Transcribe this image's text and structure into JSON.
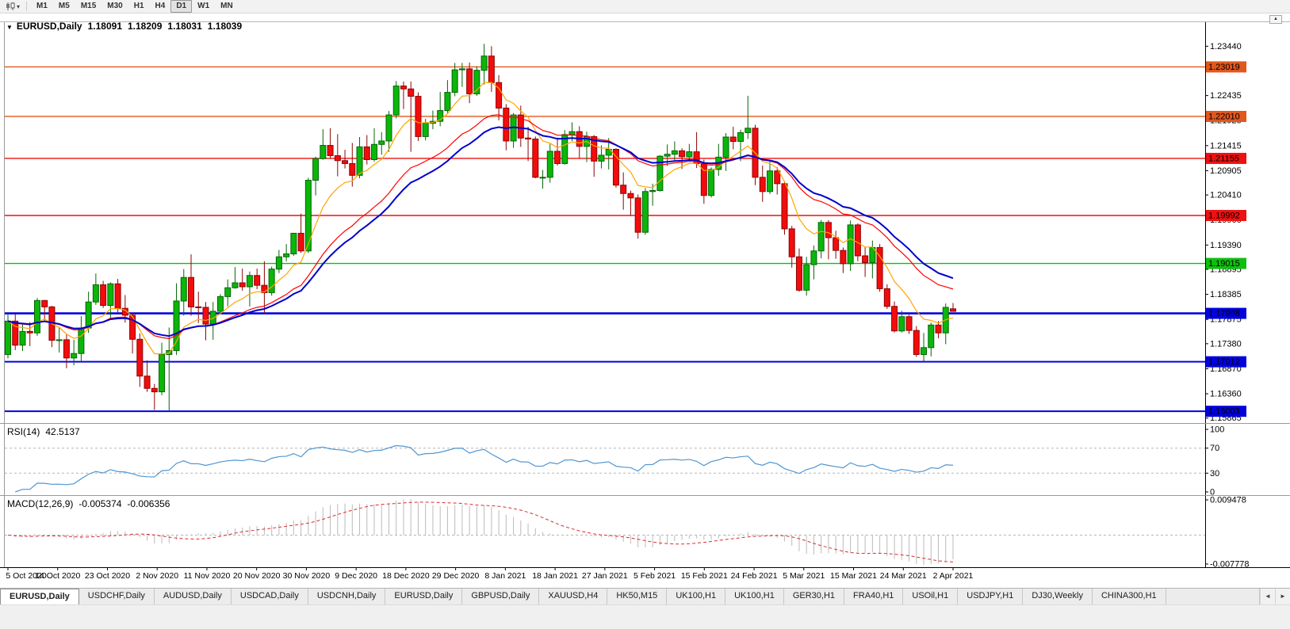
{
  "icons": {
    "up_arrow": "▲",
    "down_triangle": "▼",
    "caret_down": "▾"
  },
  "toolbar": {
    "timeframes": [
      "M1",
      "M5",
      "M15",
      "M30",
      "H1",
      "H4",
      "D1",
      "W1",
      "MN"
    ],
    "active_timeframe": "D1"
  },
  "chart": {
    "info": {
      "symbol": "EURUSD,Daily",
      "open": "1.18091",
      "high": "1.18209",
      "low": "1.18031",
      "close": "1.18039"
    },
    "price_axis": [
      "1.23440",
      "1.22990",
      "1.22435",
      "1.21925",
      "1.21415",
      "1.20905",
      "1.20410",
      "1.19900",
      "1.19390",
      "1.18895",
      "1.18385",
      "1.17875",
      "1.17380",
      "1.16870",
      "1.16360",
      "1.15865"
    ],
    "hlines": [
      {
        "label": "1.23019",
        "price": 1.23019,
        "color": "#e1571e",
        "width": 1.4
      },
      {
        "label": "1.22010",
        "price": 1.2201,
        "color": "#e1571e",
        "width": 1.4
      },
      {
        "label": "1.21155",
        "price": 1.21155,
        "color": "#ee1111",
        "width": 1.4
      },
      {
        "label": "1.19992",
        "price": 1.19992,
        "color": "#ee1111",
        "width": 1.4
      },
      {
        "label": "1.19015",
        "price": 1.19015,
        "color": "#0fbf0f",
        "width": 1.4
      },
      {
        "label": "1.17998",
        "price": 1.17998,
        "color": "#0202dd",
        "width": 2.6
      },
      {
        "label": "1.17012",
        "price": 1.17012,
        "color": "#0202dd",
        "width": 2
      },
      {
        "label": "1.16003",
        "price": 1.16003,
        "color": "#0202dd",
        "width": 2
      }
    ]
  },
  "rsi": {
    "label": "RSI(14)",
    "value": "42.5137",
    "period": 14,
    "axis": [
      "100",
      "70",
      "30",
      "0"
    ],
    "levels": [
      70,
      30
    ],
    "color": "#4f96d2"
  },
  "macd": {
    "label": "MACD(12,26,9)",
    "value1": "-0.005374",
    "value2": "-0.006356",
    "fast": 12,
    "slow": 26,
    "signal": 9,
    "axis_max": "0.009478",
    "axis_min": "-0.007778",
    "hist_color": "#bbbbbb",
    "signal_color": "#dd2a2a"
  },
  "colors": {
    "bull": "#0ab60a",
    "bull_border": "#056605",
    "bear": "#f20c0c",
    "bear_border": "#8e0404"
  },
  "chart_data": {
    "type": "candlestick",
    "title": "EURUSD,Daily",
    "price_range": [
      1.1578,
      1.2393
    ],
    "x_labels": [
      "5 Oct 2020",
      "14 Oct 2020",
      "23 Oct 2020",
      "2 Nov 2020",
      "11 Nov 2020",
      "20 Nov 2020",
      "30 Nov 2020",
      "9 Dec 2020",
      "18 Dec 2020",
      "29 Dec 2020",
      "8 Jan 2021",
      "18 Jan 2021",
      "27 Jan 2021",
      "5 Feb 2021",
      "15 Feb 2021",
      "24 Feb 2021",
      "5 Mar 2021",
      "15 Mar 2021",
      "24 Mar 2021",
      "2 Apr 2021"
    ],
    "moving_averages": [
      {
        "period": 8,
        "color": "#ffa500"
      },
      {
        "period": 21,
        "color": "#ff0000"
      },
      {
        "period": 26,
        "color": "#0000cc"
      }
    ],
    "ohlc": [
      [
        1.1716,
        1.1797,
        1.1708,
        1.1784
      ],
      [
        1.1784,
        1.1798,
        1.1725,
        1.1735
      ],
      [
        1.1735,
        1.178,
        1.1723,
        1.1763
      ],
      [
        1.1763,
        1.1782,
        1.1733,
        1.176
      ],
      [
        1.176,
        1.1831,
        1.1754,
        1.1826
      ],
      [
        1.1826,
        1.1827,
        1.1785,
        1.1813
      ],
      [
        1.1813,
        1.1815,
        1.1731,
        1.1745
      ],
      [
        1.1745,
        1.1772,
        1.172,
        1.1746
      ],
      [
        1.1746,
        1.1758,
        1.1688,
        1.1709
      ],
      [
        1.1709,
        1.1746,
        1.1694,
        1.1718
      ],
      [
        1.1718,
        1.1794,
        1.1701,
        1.177
      ],
      [
        1.177,
        1.1844,
        1.176,
        1.1823
      ],
      [
        1.1823,
        1.1881,
        1.1817,
        1.1858
      ],
      [
        1.1858,
        1.1866,
        1.1811,
        1.1816
      ],
      [
        1.1816,
        1.1863,
        1.1787,
        1.186
      ],
      [
        1.186,
        1.187,
        1.1802,
        1.181
      ],
      [
        1.181,
        1.1837,
        1.1781,
        1.1796
      ],
      [
        1.1796,
        1.18,
        1.1718,
        1.1747
      ],
      [
        1.1747,
        1.1759,
        1.165,
        1.1672
      ],
      [
        1.1672,
        1.1704,
        1.164,
        1.1647
      ],
      [
        1.1647,
        1.1656,
        1.1603,
        1.164
      ],
      [
        1.164,
        1.174,
        1.1633,
        1.1716
      ],
      [
        1.1716,
        1.1771,
        1.1602,
        1.1724
      ],
      [
        1.1724,
        1.1861,
        1.1715,
        1.1825
      ],
      [
        1.1825,
        1.189,
        1.1795,
        1.1873
      ],
      [
        1.1873,
        1.192,
        1.1795,
        1.1813
      ],
      [
        1.1813,
        1.1844,
        1.178,
        1.1812
      ],
      [
        1.1812,
        1.1823,
        1.1745,
        1.1778
      ],
      [
        1.1778,
        1.1823,
        1.1746,
        1.1804
      ],
      [
        1.1804,
        1.1839,
        1.1799,
        1.1834
      ],
      [
        1.1834,
        1.1869,
        1.1814,
        1.1852
      ],
      [
        1.1852,
        1.1894,
        1.185,
        1.1862
      ],
      [
        1.1862,
        1.1891,
        1.1846,
        1.1854
      ],
      [
        1.1854,
        1.1885,
        1.1814,
        1.1877
      ],
      [
        1.1877,
        1.1891,
        1.1849,
        1.1857
      ],
      [
        1.1857,
        1.1906,
        1.1799,
        1.1842
      ],
      [
        1.1842,
        1.1895,
        1.1836,
        1.189
      ],
      [
        1.189,
        1.1929,
        1.1882,
        1.1915
      ],
      [
        1.1915,
        1.1941,
        1.1906,
        1.1921
      ],
      [
        1.1921,
        1.1963,
        1.1917,
        1.1963
      ],
      [
        1.1963,
        1.2003,
        1.1923,
        1.1927
      ],
      [
        1.1927,
        1.2076,
        1.1923,
        1.2071
      ],
      [
        1.2071,
        1.2119,
        1.204,
        1.2115
      ],
      [
        1.2115,
        1.2175,
        1.2113,
        1.2142
      ],
      [
        1.2142,
        1.2177,
        1.2115,
        1.2121
      ],
      [
        1.2121,
        1.2165,
        1.2079,
        1.2111
      ],
      [
        1.2111,
        1.2133,
        1.2095,
        1.2105
      ],
      [
        1.2105,
        1.2147,
        1.2058,
        1.2081
      ],
      [
        1.2081,
        1.2159,
        1.2075,
        1.2139
      ],
      [
        1.2139,
        1.2163,
        1.2103,
        1.2113
      ],
      [
        1.2113,
        1.2177,
        1.2109,
        1.2144
      ],
      [
        1.2144,
        1.2169,
        1.2123,
        1.2151
      ],
      [
        1.2151,
        1.2212,
        1.2129,
        1.2204
      ],
      [
        1.2204,
        1.2273,
        1.2197,
        1.2263
      ],
      [
        1.2263,
        1.2272,
        1.2216,
        1.2257
      ],
      [
        1.2257,
        1.2272,
        1.2129,
        1.2242
      ],
      [
        1.2242,
        1.225,
        1.2151,
        1.216
      ],
      [
        1.216,
        1.2196,
        1.2152,
        1.2187
      ],
      [
        1.2187,
        1.2213,
        1.2175,
        1.2191
      ],
      [
        1.2191,
        1.2251,
        1.2181,
        1.2213
      ],
      [
        1.2213,
        1.2275,
        1.2208,
        1.225
      ],
      [
        1.225,
        1.231,
        1.2242,
        1.2296
      ],
      [
        1.2296,
        1.231,
        1.2261,
        1.2298
      ],
      [
        1.2298,
        1.2311,
        1.2228,
        1.2247
      ],
      [
        1.2247,
        1.2303,
        1.2243,
        1.2295
      ],
      [
        1.2295,
        1.2349,
        1.2266,
        1.2324
      ],
      [
        1.2324,
        1.2344,
        1.2251,
        1.227
      ],
      [
        1.227,
        1.2285,
        1.2193,
        1.2218
      ],
      [
        1.2218,
        1.2226,
        1.2132,
        1.2151
      ],
      [
        1.2151,
        1.2208,
        1.2137,
        1.2204
      ],
      [
        1.2204,
        1.2223,
        1.2139,
        1.2157
      ],
      [
        1.2157,
        1.218,
        1.211,
        1.2155
      ],
      [
        1.2155,
        1.216,
        1.2075,
        1.2077
      ],
      [
        1.2077,
        1.2092,
        1.2054,
        1.2077
      ],
      [
        1.2077,
        1.2145,
        1.2066,
        1.213
      ],
      [
        1.213,
        1.2158,
        1.2101,
        1.2105
      ],
      [
        1.2105,
        1.2173,
        1.2103,
        1.2164
      ],
      [
        1.2164,
        1.2189,
        1.2151,
        1.217
      ],
      [
        1.217,
        1.2181,
        1.2116,
        1.214
      ],
      [
        1.214,
        1.217,
        1.2108,
        1.216
      ],
      [
        1.216,
        1.2163,
        1.2078,
        1.211
      ],
      [
        1.211,
        1.2142,
        1.2095,
        1.2122
      ],
      [
        1.2122,
        1.2157,
        1.2093,
        1.2134
      ],
      [
        1.2134,
        1.2136,
        1.2056,
        1.2061
      ],
      [
        1.2061,
        1.2087,
        1.2011,
        1.2044
      ],
      [
        1.2044,
        1.205,
        1.1999,
        1.2035
      ],
      [
        1.2035,
        1.2042,
        1.1952,
        1.1965
      ],
      [
        1.1965,
        1.2055,
        1.196,
        1.2048
      ],
      [
        1.2048,
        1.2064,
        1.2019,
        1.205
      ],
      [
        1.205,
        1.2122,
        1.2048,
        1.212
      ],
      [
        1.212,
        1.2144,
        1.21,
        1.2124
      ],
      [
        1.2124,
        1.215,
        1.2109,
        1.2131
      ],
      [
        1.2131,
        1.2136,
        1.2094,
        1.2119
      ],
      [
        1.2119,
        1.2145,
        1.211,
        1.2129
      ],
      [
        1.2129,
        1.2169,
        1.2096,
        1.2105
      ],
      [
        1.2105,
        1.2113,
        1.2023,
        1.204
      ],
      [
        1.204,
        1.2097,
        1.2036,
        1.2093
      ],
      [
        1.2093,
        1.2145,
        1.208,
        1.2118
      ],
      [
        1.2118,
        1.2167,
        1.209,
        1.2159
      ],
      [
        1.2159,
        1.218,
        1.2134,
        1.215
      ],
      [
        1.215,
        1.2174,
        1.211,
        1.2168
      ],
      [
        1.2168,
        1.2243,
        1.2155,
        1.2177
      ],
      [
        1.2177,
        1.2184,
        1.2061,
        1.2077
      ],
      [
        1.2077,
        1.2101,
        1.2027,
        1.2048
      ],
      [
        1.2048,
        1.2113,
        1.2043,
        1.209
      ],
      [
        1.209,
        1.2098,
        1.2042,
        1.2064
      ],
      [
        1.2064,
        1.2069,
        1.196,
        1.1972
      ],
      [
        1.1972,
        1.1978,
        1.1893,
        1.1915
      ],
      [
        1.1915,
        1.1932,
        1.1844,
        1.1847
      ],
      [
        1.1847,
        1.1915,
        1.1836,
        1.1899
      ],
      [
        1.1899,
        1.1938,
        1.1869,
        1.1927
      ],
      [
        1.1927,
        1.199,
        1.1912,
        1.1985
      ],
      [
        1.1985,
        1.199,
        1.191,
        1.1954
      ],
      [
        1.1954,
        1.1968,
        1.1911,
        1.1928
      ],
      [
        1.1928,
        1.1934,
        1.1882,
        1.1901
      ],
      [
        1.1901,
        1.1989,
        1.1886,
        1.198
      ],
      [
        1.198,
        1.1983,
        1.1906,
        1.1917
      ],
      [
        1.1917,
        1.1935,
        1.1874,
        1.1903
      ],
      [
        1.1903,
        1.1948,
        1.1871,
        1.1934
      ],
      [
        1.1934,
        1.1941,
        1.1844,
        1.185
      ],
      [
        1.185,
        1.1859,
        1.1809,
        1.1814
      ],
      [
        1.1814,
        1.1824,
        1.1761,
        1.1764
      ],
      [
        1.1764,
        1.1805,
        1.1761,
        1.1793
      ],
      [
        1.1793,
        1.1797,
        1.1758,
        1.1765
      ],
      [
        1.1765,
        1.1774,
        1.1711,
        1.1716
      ],
      [
        1.1716,
        1.176,
        1.1702,
        1.173
      ],
      [
        1.173,
        1.1781,
        1.1712,
        1.1776
      ],
      [
        1.1776,
        1.1784,
        1.1749,
        1.176
      ],
      [
        1.176,
        1.182,
        1.1737,
        1.1812
      ],
      [
        1.18091,
        1.18209,
        1.18031,
        1.18039
      ]
    ]
  },
  "tabs": {
    "left_arrow": "◄",
    "right_arrow": "►",
    "items": [
      {
        "label": "EURUSD,Daily",
        "active": true
      },
      {
        "label": "USDCHF,Daily"
      },
      {
        "label": "AUDUSD,Daily"
      },
      {
        "label": "USDCAD,Daily"
      },
      {
        "label": "USDCNH,Daily"
      },
      {
        "label": "EURUSD,Daily"
      },
      {
        "label": "GBPUSD,Daily"
      },
      {
        "label": "XAUUSD,H4"
      },
      {
        "label": "HK50,M15"
      },
      {
        "label": "UK100,H1"
      },
      {
        "label": "UK100,H1"
      },
      {
        "label": "GER30,H1"
      },
      {
        "label": "FRA40,H1"
      },
      {
        "label": "USOil,H1"
      },
      {
        "label": "USDJPY,H1"
      },
      {
        "label": "DJ30,Weekly"
      },
      {
        "label": "CHINA300,H1"
      }
    ]
  }
}
